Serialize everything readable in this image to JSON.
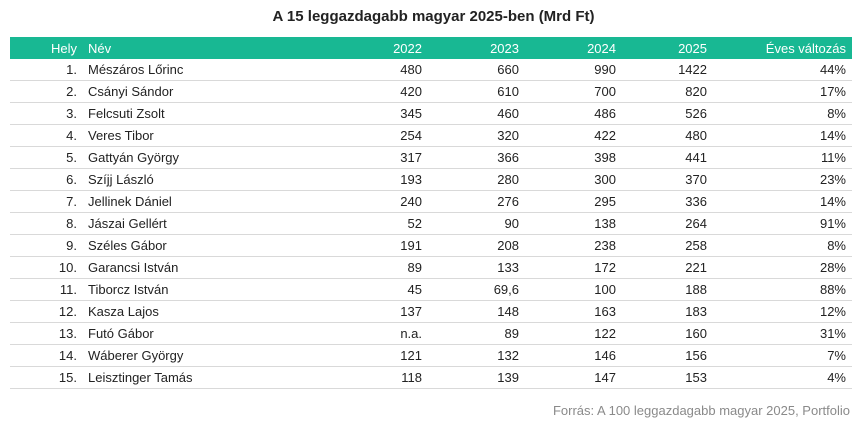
{
  "chart_data": {
    "type": "table",
    "title": "A 15 leggazdagabb magyar 2025-ben (Mrd Ft)",
    "columns": [
      "Hely",
      "Név",
      "2022",
      "2023",
      "2024",
      "2025",
      "Éves változás"
    ],
    "rows": [
      [
        "1.",
        "Mészáros Lőrinc",
        "480",
        "660",
        "990",
        "1422",
        "44%"
      ],
      [
        "2.",
        "Csányi Sándor",
        "420",
        "610",
        "700",
        "820",
        "17%"
      ],
      [
        "3.",
        "Felcsuti Zsolt",
        "345",
        "460",
        "486",
        "526",
        "8%"
      ],
      [
        "4.",
        "Veres Tibor",
        "254",
        "320",
        "422",
        "480",
        "14%"
      ],
      [
        "5.",
        "Gattyán György",
        "317",
        "366",
        "398",
        "441",
        "11%"
      ],
      [
        "6.",
        "Szíjj László",
        "193",
        "280",
        "300",
        "370",
        "23%"
      ],
      [
        "7.",
        "Jellinek Dániel",
        "240",
        "276",
        "295",
        "336",
        "14%"
      ],
      [
        "8.",
        "Jászai Gellért",
        "52",
        "90",
        "138",
        "264",
        "91%"
      ],
      [
        "9.",
        "Széles Gábor",
        "191",
        "208",
        "238",
        "258",
        "8%"
      ],
      [
        "10.",
        "Garancsi István",
        "89",
        "133",
        "172",
        "221",
        "28%"
      ],
      [
        "11.",
        "Tiborcz István",
        "45",
        "69,6",
        "100",
        "188",
        "88%"
      ],
      [
        "12.",
        "Kasza Lajos",
        "137",
        "148",
        "163",
        "183",
        "12%"
      ],
      [
        "13.",
        "Futó Gábor",
        "n.a.",
        "89",
        "122",
        "160",
        "31%"
      ],
      [
        "14.",
        "Wáberer György",
        "121",
        "132",
        "146",
        "156",
        "7%"
      ],
      [
        "15.",
        "Leisztinger Tamás",
        "118",
        "139",
        "147",
        "153",
        "4%"
      ]
    ],
    "source": "Forrás: A 100 leggazdagabb magyar 2025, Portfolio"
  },
  "colors": {
    "header_bg": "#18b893",
    "header_text": "#ffffff",
    "row_divider": "#d9d9d9",
    "source_text": "#8a8a8a"
  }
}
